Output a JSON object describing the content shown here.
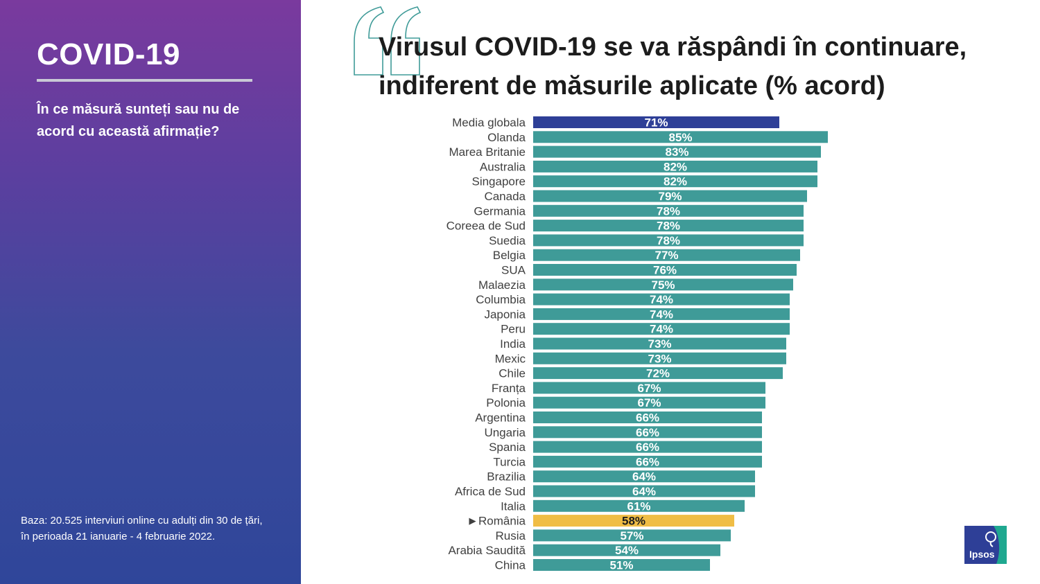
{
  "sidebar": {
    "title": "COVID-19",
    "question": "În ce măsură sunteți sau nu de acord cu această afirmație?",
    "footnote_line1": "Baza: 20.525 interviuri online cu adulți din 30 de țări,",
    "footnote_line2": "în perioada 21 ianuarie - 4 februarie 2022."
  },
  "logo": {
    "text": "Ipsos"
  },
  "colors": {
    "global_bar": "#2e3f97",
    "country_bar": "#3f9b98",
    "highlight_bar": "#f0bd45",
    "label_on_bar": "#ffffff",
    "label_on_highlight": "#1c1c1c",
    "category_text": "#404040"
  },
  "chart_data": {
    "type": "bar",
    "orientation": "horizontal",
    "title": "Virusul COVID-19 se va răspândi în continuare, indiferent de măsurile aplicate (% acord)",
    "title_line1": "Virusul COVID-19 se va răspândi în continuare,",
    "title_line2": "indiferent de măsurile aplicate (% acord)",
    "xlim": [
      0,
      100
    ],
    "value_suffix": "%",
    "categories": [
      "Media globala",
      "Olanda",
      "Marea Britanie",
      "Australia",
      "Singapore",
      "Canada",
      "Germania",
      "Coreea de Sud",
      "Suedia",
      "Belgia",
      "SUA",
      "Malaezia",
      "Columbia",
      "Japonia",
      "Peru",
      "India",
      "Mexic",
      "Chile",
      "Franța",
      "Polonia",
      "Argentina",
      "Ungaria",
      "Spania",
      "Turcia",
      "Brazilia",
      "Africa de Sud",
      "Italia",
      "►România",
      "Rusia",
      "Arabia Saudită",
      "China"
    ],
    "values": [
      71,
      85,
      83,
      82,
      82,
      79,
      78,
      78,
      78,
      77,
      76,
      75,
      74,
      74,
      74,
      73,
      73,
      72,
      67,
      67,
      66,
      66,
      66,
      66,
      64,
      64,
      61,
      58,
      57,
      54,
      51
    ],
    "value_labels": [
      "71%",
      "85%",
      "83%",
      "82%",
      "82%",
      "79%",
      "78%",
      "78%",
      "78%",
      "77%",
      "76%",
      "75%",
      "74%",
      "74%",
      "74%",
      "73%",
      "73%",
      "72%",
      "67%",
      "67%",
      "66%",
      "66%",
      "66%",
      "66%",
      "64%",
      "64%",
      "61%",
      "58%",
      "57%",
      "54%",
      "51%"
    ],
    "bar_roles": [
      "global",
      "country",
      "country",
      "country",
      "country",
      "country",
      "country",
      "country",
      "country",
      "country",
      "country",
      "country",
      "country",
      "country",
      "country",
      "country",
      "country",
      "country",
      "country",
      "country",
      "country",
      "country",
      "country",
      "country",
      "country",
      "country",
      "country",
      "highlight",
      "country",
      "country",
      "country"
    ]
  }
}
